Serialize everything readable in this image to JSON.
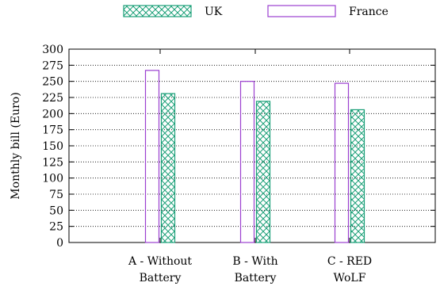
{
  "chart_data": {
    "type": "bar",
    "title": "",
    "xlabel": "",
    "ylabel": "Monthly bill (Euro)",
    "ylim": [
      0,
      300
    ],
    "yticks": [
      "0",
      "25",
      "50",
      "75",
      "100",
      "125",
      "150",
      "175",
      "200",
      "225",
      "250",
      "275",
      "300"
    ],
    "grid": "horizontal dotted",
    "legend_position": "top",
    "categories": [
      [
        "A - Without",
        "Battery"
      ],
      [
        "B - With",
        "Battery"
      ],
      [
        "C - RED",
        "WoLF"
      ]
    ],
    "legend": [
      {
        "key": "uk",
        "label": "UK",
        "pattern": "crosshatch",
        "color": "#1a9f77"
      },
      {
        "key": "france",
        "label": "France",
        "pattern": "none",
        "color": "#9b3fd0"
      }
    ],
    "series": [
      {
        "name": "France",
        "color": "#9b3fd0",
        "pattern": "none",
        "values": [
          267,
          250,
          247
        ]
      },
      {
        "name": "UK",
        "color": "#1a9f77",
        "pattern": "crosshatch",
        "values": [
          231,
          219,
          206
        ]
      }
    ]
  }
}
